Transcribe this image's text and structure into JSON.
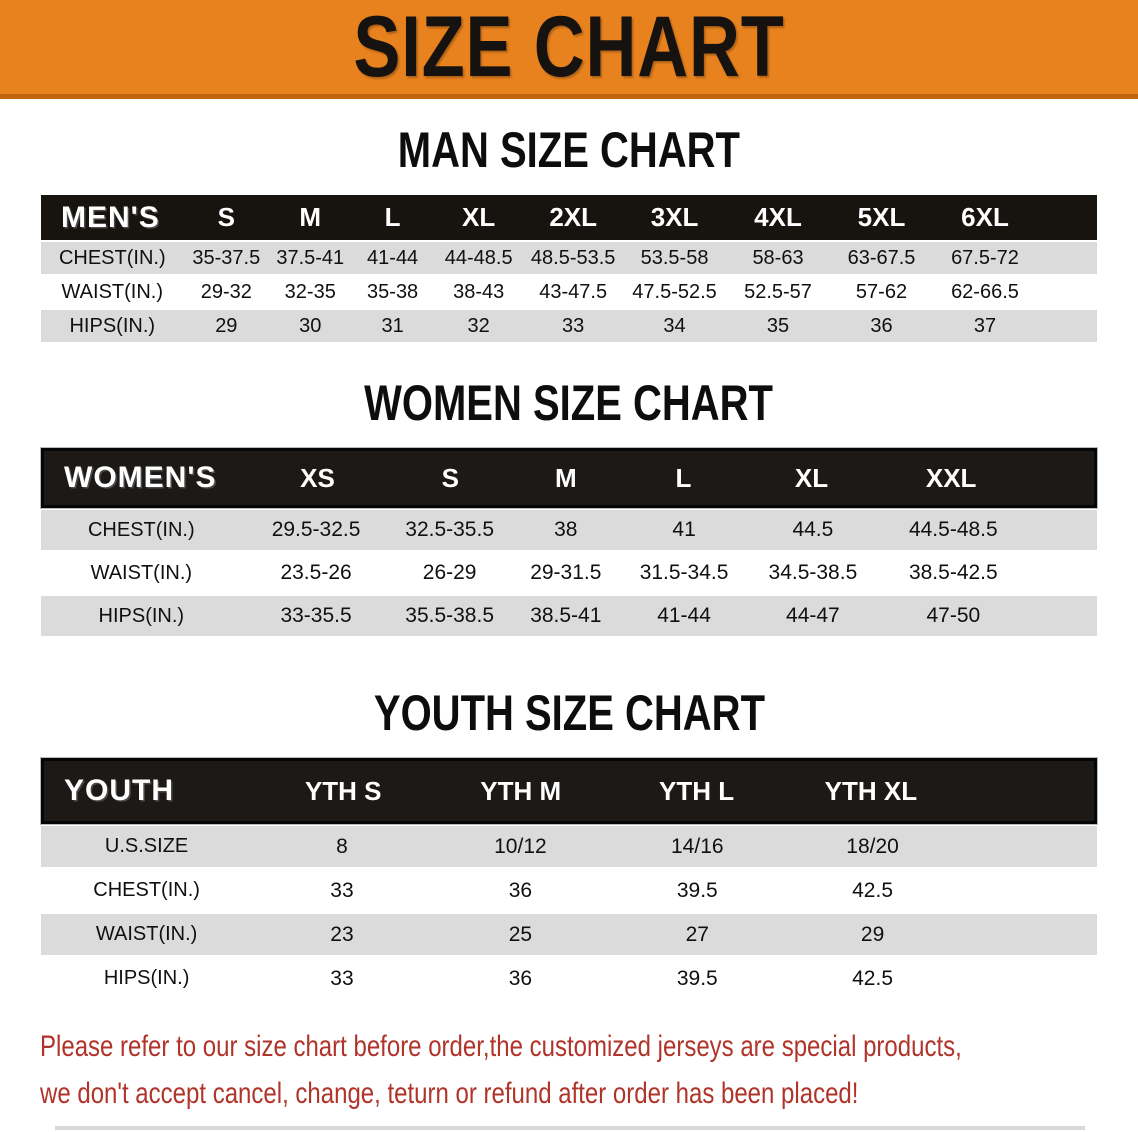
{
  "colors": {
    "accent": "#E8821E",
    "accent-dark": "#C1660E",
    "bar": "#17130F",
    "row-gray": "#DBDBDB",
    "note": "#B0342A"
  },
  "banner": {
    "title": "SIZE CHART"
  },
  "men": {
    "heading": "MAN SIZE CHART",
    "header_label": "MEN'S",
    "sizes": [
      "S",
      "M",
      "L",
      "XL",
      "2XL",
      "3XL",
      "4XL",
      "5XL",
      "6XL"
    ],
    "rows": [
      {
        "label": "CHEST(IN.)",
        "values": [
          "35-37.5",
          "37.5-41",
          "41-44",
          "44-48.5",
          "48.5-53.5",
          "53.5-58",
          "58-63",
          "63-67.5",
          "67.5-72"
        ]
      },
      {
        "label": "WAIST(IN.)",
        "values": [
          "29-32",
          "32-35",
          "35-38",
          "38-43",
          "43-47.5",
          "47.5-52.5",
          "52.5-57",
          "57-62",
          "62-66.5"
        ]
      },
      {
        "label": "HIPS(IN.)",
        "values": [
          "29",
          "30",
          "31",
          "32",
          "33",
          "34",
          "35",
          "36",
          "37"
        ]
      }
    ]
  },
  "women": {
    "heading": "WOMEN SIZE CHART",
    "header_label": "WOMEN'S",
    "sizes": [
      "XS",
      "S",
      "M",
      "L",
      "XL",
      "XXL"
    ],
    "rows": [
      {
        "label": "CHEST(IN.)",
        "values": [
          "29.5-32.5",
          "32.5-35.5",
          "38",
          "41",
          "44.5",
          "44.5-48.5"
        ]
      },
      {
        "label": "WAIST(IN.)",
        "values": [
          "23.5-26",
          "26-29",
          "29-31.5",
          "31.5-34.5",
          "34.5-38.5",
          "38.5-42.5"
        ]
      },
      {
        "label": "HIPS(IN.)",
        "values": [
          "33-35.5",
          "35.5-38.5",
          "38.5-41",
          "41-44",
          "44-47",
          "47-50"
        ]
      }
    ]
  },
  "youth": {
    "heading": "YOUTH SIZE CHART",
    "header_label": "YOUTH",
    "sizes": [
      "YTH S",
      "YTH M",
      "YTH L",
      "YTH XL"
    ],
    "rows": [
      {
        "label": "U.S.SIZE",
        "values": [
          "8",
          "10/12",
          "14/16",
          "18/20"
        ]
      },
      {
        "label": "CHEST(IN.)",
        "values": [
          "33",
          "36",
          "39.5",
          "42.5"
        ]
      },
      {
        "label": "WAIST(IN.)",
        "values": [
          "23",
          "25",
          "27",
          "29"
        ]
      },
      {
        "label": "HIPS(IN.)",
        "values": [
          "33",
          "36",
          "39.5",
          "42.5"
        ]
      }
    ]
  },
  "footer": {
    "line1": "Please refer to our size chart before order,the customized jerseys are special products,",
    "line2": "we don't accept cancel, change, teturn or refund after order has been placed!"
  }
}
